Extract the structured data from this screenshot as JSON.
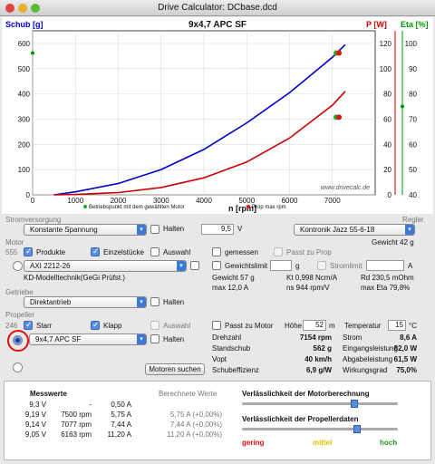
{
  "window": {
    "title": "Drive Calculator: DCbase.dcd"
  },
  "chart": {
    "title": "9x4,7 APC SF",
    "left_axis_label": "Schub [g]",
    "p_axis_label": "P [W]",
    "eta_axis_label": "Eta [%]",
    "x_axis_label": "n [rpm]",
    "legend_op": "Betriebspunkt mit dem gewählten Motor",
    "legend_prop": "Prop max rpm",
    "watermark": "www.drivecalc.de",
    "colors": {
      "thrust": "#0000cc",
      "power": "#cc0000",
      "eta": "#009900"
    }
  },
  "chart_data": {
    "type": "line",
    "title": "9x4,7 APC SF",
    "xlabel": "n [rpm]",
    "ylabel": "Schub [g]",
    "x_ticks": [
      "0",
      "1000",
      "2000",
      "3000",
      "4000",
      "5000",
      "6000",
      "7000"
    ],
    "y_left_ticks": [
      "0",
      "100",
      "200",
      "300",
      "400",
      "500",
      "600"
    ],
    "y_p_ticks": [
      "0",
      "20",
      "40",
      "60",
      "80",
      "100",
      "120"
    ],
    "y_eta_ticks": [
      "40",
      "50",
      "60",
      "70",
      "80",
      "90",
      "100"
    ],
    "xlim": [
      0,
      8000
    ],
    "ylim": [
      0,
      650
    ],
    "series": [
      {
        "name": "Schub [g]",
        "x": [
          1000,
          2000,
          3000,
          4000,
          5000,
          6000,
          7000,
          7300
        ],
        "values": [
          12,
          45,
          100,
          180,
          285,
          405,
          545,
          595
        ]
      },
      {
        "name": "P [W]",
        "x": [
          1000,
          2000,
          3000,
          4000,
          5000,
          6000,
          7000,
          7300
        ],
        "values": [
          0.3,
          1.8,
          5.8,
          13.5,
          26,
          45,
          71,
          82
        ]
      }
    ],
    "points": [
      {
        "name": "Betriebspunkt mit dem gewählten Motor",
        "x": 7154,
        "schub": 562,
        "p": 61.5
      },
      {
        "name": "Prop max rpm",
        "x": 7154,
        "schub": 562,
        "p": 61.5
      }
    ]
  },
  "stromversorgung": {
    "label": "Stromversorgung",
    "select": "Konstante Spannung",
    "halten": "Halten",
    "voltage": "9,5",
    "unit": "V"
  },
  "regler": {
    "label": "Regler",
    "select": "Kontronik Jazz 55-6-18",
    "weight": "Gewicht 42 g"
  },
  "motor": {
    "label": "Motor",
    "count": "555",
    "produkte": "Produkte",
    "einzelstuecke": "Einzelstücke",
    "auswahl": "Auswahl",
    "gemessen": "gemessen",
    "passt_zu_prop": "Passt zu Prop",
    "select": "AXI 2212-26",
    "maker": "KD-Modelltechnik(GeGi Prüfst.)",
    "gewichtslimit": "Gewichtslimit",
    "g_unit": "g",
    "stromlimit": "Stromlimit",
    "a_unit": "A",
    "gewicht": "Gewicht 57 g",
    "kt": "Kt 0,998 Ncm/A",
    "rd": "Rd 230,5 mOhm",
    "max_a": "max 12,0 A",
    "ns": "ns 944 rpm/V",
    "max_eta": "max Eta 79,8%"
  },
  "getriebe": {
    "label": "Getriebe",
    "select": "Direktantrieb",
    "halten": "Halten"
  },
  "propeller": {
    "label": "Propeller",
    "count": "246",
    "starr": "Starr",
    "klapp": "Klapp",
    "auswahl": "Auswahl",
    "passt_zu_motor": "Passt zu Motor",
    "hoehe_label": "Höhe",
    "hoehe": "52",
    "hoehe_unit": "m",
    "temp_label": "Temperatur",
    "temp": "15",
    "temp_unit": "°C",
    "select": "9x4,7 APC SF",
    "halten": "Halten",
    "motoren_suchen": "Motoren suchen"
  },
  "results": {
    "drehzahl_l": "Drehzahl",
    "drehzahl": "7154 rpm",
    "standschub_l": "Standschub",
    "standschub": "562 g",
    "vopt_l": "Vopt",
    "vopt": "40 km/h",
    "schubeff_l": "Schubeffizienz",
    "schubeff": "6,9 g/W",
    "strom_l": "Strom",
    "strom": "8,6 A",
    "eing_l": "Eingangsleistung",
    "eing": "82,0 W",
    "abg_l": "Abgabeleistung",
    "abg": "61,5 W",
    "wirk_l": "Wirkungsgrad",
    "wirk": "75,0%"
  },
  "messwerte": {
    "header": "Messwerte",
    "header2": "Berechnete Werte",
    "rows": [
      {
        "v": "9,3 V",
        "rpm": "-",
        "a": "0,50 A",
        "calc": ""
      },
      {
        "v": "9,19 V",
        "rpm": "7500 rpm",
        "a": "5,75 A",
        "calc": "5,75 A (+0,00%)"
      },
      {
        "v": "9,14 V",
        "rpm": "7077 rpm",
        "a": "7,44 A",
        "calc": "7,44 A (+0,00%)"
      },
      {
        "v": "9,05 V",
        "rpm": "6163 rpm",
        "a": "11,20 A",
        "calc": "11,20 A (+0,00%)"
      }
    ]
  },
  "reliability": {
    "motor_label": "Verlässlichkeit der Motorberechnung",
    "motor_level": 0.72,
    "prop_label": "Verlässlichkeit der Propellerdaten",
    "prop_level": 0.74,
    "low": "gering",
    "mid": "mittel",
    "high": "hoch"
  }
}
